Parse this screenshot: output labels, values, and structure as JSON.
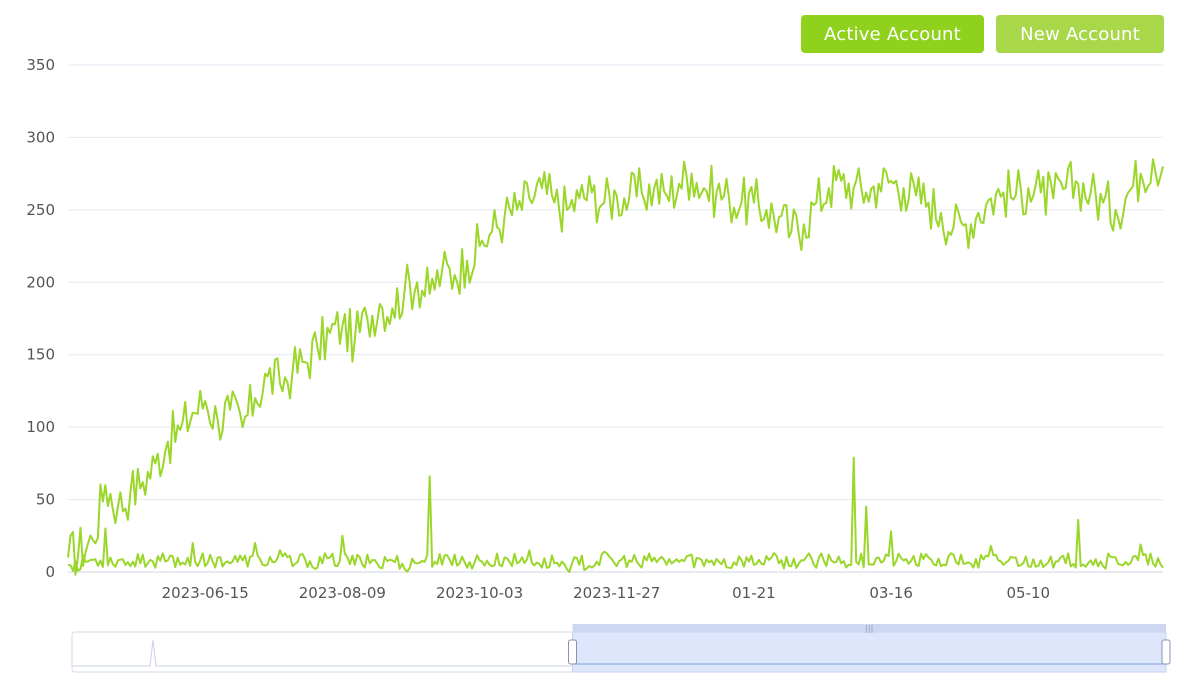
{
  "legend": {
    "items": [
      {
        "label": "Active Account",
        "color": "#8fd11c"
      },
      {
        "label": "New Account",
        "color": "#a8d84a"
      }
    ]
  },
  "colors": {
    "line": "#9bd62a",
    "grid": "#e3e8f0",
    "zoom_fill": "#dde6fb",
    "zoom_border": "#c6d1ee"
  },
  "chart_data": {
    "type": "line",
    "title": "",
    "xlabel": "",
    "ylabel": "",
    "ylim": [
      0,
      350
    ],
    "yticks": [
      0,
      50,
      100,
      150,
      200,
      250,
      300,
      350
    ],
    "x_tick_labels": [
      "2023-06-15",
      "2023-08-09",
      "2023-10-03",
      "2023-11-27",
      "01-21",
      "03-16",
      "05-10"
    ],
    "x_range": [
      "2023-04-21",
      "2024-07-03"
    ],
    "grid": true,
    "legend_position": "top-right",
    "series": [
      {
        "name": "Active Account",
        "points": [
          [
            "2023-04-21",
            10
          ],
          [
            "2023-05-01",
            22
          ],
          [
            "2023-05-06",
            60
          ],
          [
            "2023-05-11",
            45
          ],
          [
            "2023-05-16",
            55
          ],
          [
            "2023-05-21",
            62
          ],
          [
            "2023-05-26",
            75
          ],
          [
            "2023-05-31",
            90
          ],
          [
            "2023-06-05",
            98
          ],
          [
            "2023-06-10",
            110
          ],
          [
            "2023-06-15",
            118
          ],
          [
            "2023-06-20",
            105
          ],
          [
            "2023-06-25",
            112
          ],
          [
            "2023-06-30",
            100
          ],
          [
            "2023-07-05",
            120
          ],
          [
            "2023-07-10",
            135
          ],
          [
            "2023-07-15",
            130
          ],
          [
            "2023-07-20",
            138
          ],
          [
            "2023-07-25",
            145
          ],
          [
            "2023-07-30",
            155
          ],
          [
            "2023-08-04",
            165
          ],
          [
            "2023-08-09",
            170
          ],
          [
            "2023-08-14",
            160
          ],
          [
            "2023-08-19",
            175
          ],
          [
            "2023-08-24",
            185
          ],
          [
            "2023-08-29",
            182
          ],
          [
            "2023-09-03",
            195
          ],
          [
            "2023-09-08",
            200
          ],
          [
            "2023-09-13",
            192
          ],
          [
            "2023-09-18",
            208
          ],
          [
            "2023-09-23",
            205
          ],
          [
            "2023-09-28",
            215
          ],
          [
            "2023-10-03",
            225
          ],
          [
            "2023-10-08",
            235
          ],
          [
            "2023-10-13",
            245
          ],
          [
            "2023-10-18",
            250
          ],
          [
            "2023-10-23",
            258
          ],
          [
            "2023-10-28",
            265
          ],
          [
            "2023-11-02",
            255
          ],
          [
            "2023-11-07",
            250
          ],
          [
            "2023-11-12",
            258
          ],
          [
            "2023-11-17",
            262
          ],
          [
            "2023-11-22",
            255
          ],
          [
            "2023-11-27",
            260
          ],
          [
            "2023-12-02",
            258
          ],
          [
            "2023-12-07",
            262
          ],
          [
            "2023-12-12",
            265
          ],
          [
            "2023-12-17",
            260
          ],
          [
            "2023-12-22",
            268
          ],
          [
            "2023-12-27",
            275
          ],
          [
            "2024-01-01",
            265
          ],
          [
            "2024-01-06",
            262
          ],
          [
            "2024-01-11",
            258
          ],
          [
            "2024-01-16",
            255
          ],
          [
            "2024-01-21",
            255
          ],
          [
            "2024-01-26",
            250
          ],
          [
            "2024-01-31",
            245
          ],
          [
            "2024-02-05",
            235
          ],
          [
            "2024-02-10",
            240
          ],
          [
            "2024-02-15",
            255
          ],
          [
            "2024-02-20",
            265
          ],
          [
            "2024-02-25",
            270
          ],
          [
            "2024-03-01",
            265
          ],
          [
            "2024-03-06",
            262
          ],
          [
            "2024-03-11",
            268
          ],
          [
            "2024-03-16",
            270
          ],
          [
            "2024-03-21",
            265
          ],
          [
            "2024-03-26",
            260
          ],
          [
            "2024-03-31",
            255
          ],
          [
            "2024-04-05",
            248
          ],
          [
            "2024-04-10",
            238
          ],
          [
            "2024-04-15",
            240
          ],
          [
            "2024-04-20",
            248
          ],
          [
            "2024-04-25",
            258
          ],
          [
            "2024-04-30",
            262
          ],
          [
            "2024-05-05",
            260
          ],
          [
            "2024-05-10",
            265
          ],
          [
            "2024-05-15",
            262
          ],
          [
            "2024-05-20",
            258
          ],
          [
            "2024-05-25",
            265
          ],
          [
            "2024-05-30",
            268
          ],
          [
            "2024-06-04",
            262
          ],
          [
            "2024-06-09",
            255
          ],
          [
            "2024-06-14",
            250
          ],
          [
            "2024-06-19",
            262
          ],
          [
            "2024-06-24",
            275
          ],
          [
            "2024-06-29",
            285
          ],
          [
            "2024-07-03",
            280
          ]
        ]
      },
      {
        "name": "New Account",
        "points": [
          [
            "2023-04-21",
            5
          ],
          [
            "2023-04-26",
            2
          ],
          [
            "2023-05-06",
            30
          ],
          [
            "2023-05-11",
            8
          ],
          [
            "2023-05-16",
            4
          ],
          [
            "2023-05-21",
            12
          ],
          [
            "2023-05-26",
            3
          ],
          [
            "2023-05-31",
            8
          ],
          [
            "2023-06-05",
            5
          ],
          [
            "2023-06-10",
            20
          ],
          [
            "2023-06-15",
            4
          ],
          [
            "2023-06-20",
            10
          ],
          [
            "2023-06-25",
            6
          ],
          [
            "2023-06-30",
            8
          ],
          [
            "2023-07-05",
            20
          ],
          [
            "2023-07-10",
            5
          ],
          [
            "2023-07-15",
            15
          ],
          [
            "2023-07-20",
            4
          ],
          [
            "2023-07-25",
            9
          ],
          [
            "2023-07-30",
            3
          ],
          [
            "2023-08-04",
            10
          ],
          [
            "2023-08-09",
            25
          ],
          [
            "2023-08-14",
            5
          ],
          [
            "2023-08-19",
            12
          ],
          [
            "2023-08-24",
            3
          ],
          [
            "2023-08-29",
            8
          ],
          [
            "2023-09-03",
            2
          ],
          [
            "2023-09-08",
            6
          ],
          [
            "2023-09-13",
            66
          ],
          [
            "2023-09-18",
            5
          ],
          [
            "2023-09-23",
            12
          ],
          [
            "2023-09-28",
            3
          ],
          [
            "2023-10-03",
            8
          ],
          [
            "2023-10-08",
            4
          ],
          [
            "2023-10-13",
            10
          ],
          [
            "2023-10-18",
            6
          ],
          [
            "2023-10-23",
            15
          ],
          [
            "2023-10-28",
            3
          ],
          [
            "2023-11-02",
            6
          ],
          [
            "2023-11-07",
            2
          ],
          [
            "2023-11-12",
            5
          ],
          [
            "2023-11-17",
            3
          ],
          [
            "2023-11-22",
            14
          ],
          [
            "2023-11-27",
            4
          ],
          [
            "2023-12-02",
            8
          ],
          [
            "2023-12-07",
            3
          ],
          [
            "2023-12-12",
            10
          ],
          [
            "2023-12-17",
            5
          ],
          [
            "2023-12-22",
            7
          ],
          [
            "2023-12-27",
            12
          ],
          [
            "2024-01-01",
            4
          ],
          [
            "2024-01-06",
            9
          ],
          [
            "2024-01-11",
            3
          ],
          [
            "2024-01-16",
            8
          ],
          [
            "2024-01-21",
            5
          ],
          [
            "2024-01-26",
            11
          ],
          [
            "2024-01-31",
            6
          ],
          [
            "2024-02-05",
            4
          ],
          [
            "2024-02-10",
            8
          ],
          [
            "2024-02-15",
            3
          ],
          [
            "2024-02-20",
            12
          ],
          [
            "2024-02-25",
            6
          ],
          [
            "2024-03-01",
            79
          ],
          [
            "2024-03-06",
            45
          ],
          [
            "2024-03-11",
            10
          ],
          [
            "2024-03-16",
            28
          ],
          [
            "2024-03-21",
            8
          ],
          [
            "2024-03-26",
            5
          ],
          [
            "2024-03-31",
            10
          ],
          [
            "2024-04-05",
            4
          ],
          [
            "2024-04-10",
            12
          ],
          [
            "2024-04-15",
            6
          ],
          [
            "2024-04-20",
            3
          ],
          [
            "2024-04-25",
            18
          ],
          [
            "2024-04-30",
            5
          ],
          [
            "2024-05-05",
            10
          ],
          [
            "2024-05-10",
            4
          ],
          [
            "2024-05-15",
            8
          ],
          [
            "2024-05-20",
            3
          ],
          [
            "2024-05-25",
            6
          ],
          [
            "2024-05-30",
            36
          ],
          [
            "2024-06-04",
            8
          ],
          [
            "2024-06-09",
            4
          ],
          [
            "2024-06-14",
            10
          ],
          [
            "2024-06-19",
            5
          ],
          [
            "2024-06-24",
            19
          ],
          [
            "2024-06-29",
            6
          ],
          [
            "2024-07-03",
            3
          ]
        ]
      }
    ]
  },
  "zoom": {
    "start_fraction": 0.4575,
    "end_fraction": 1.0,
    "handle_glyph": "|||"
  }
}
